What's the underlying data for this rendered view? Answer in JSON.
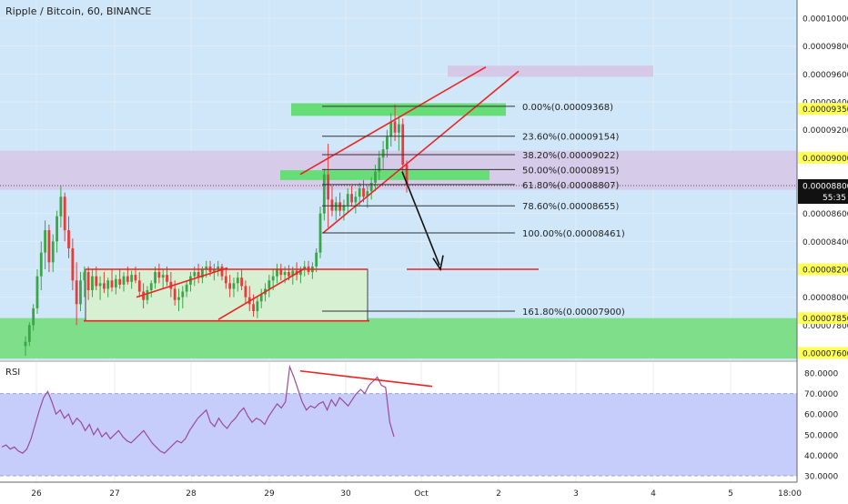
{
  "header": {
    "title": "Ripple / Bitcoin, 60, BINANCE"
  },
  "colors": {
    "main_bg": "#cfe7f8",
    "rsi_bg": "#c6cdfa",
    "zone_green": "#7ede8a",
    "zone_purple": "#d6c9e8",
    "fib_green": "#66dd77",
    "triangle_fill": "#d7f0d2",
    "drawing_red": "#ee2222",
    "rsi_line": "#9a4a9e",
    "candle_up": "#3aa648",
    "candle_down": "#e83b3b",
    "highlight_tag": "#ffff55"
  },
  "price_axis": {
    "ticks": [
      "0.00010000",
      "0.00009800",
      "0.00009600",
      "0.00009400",
      "0.00009200",
      "0.00009000",
      "0.00008800",
      "0.00008600",
      "0.00008400",
      "0.00008200",
      "0.00008000",
      "0.00007800",
      "0.00007600"
    ],
    "highlighted": [
      "0.00009350",
      "0.00009000",
      "0.00008200",
      "0.00007850",
      "0.00007600"
    ],
    "current_price": "0.00008800",
    "countdown": "55:35"
  },
  "time_axis": {
    "labels": [
      "26",
      "27",
      "28",
      "29",
      "30",
      "Oct",
      "2",
      "3",
      "4",
      "5",
      "18:00"
    ]
  },
  "fib_levels": [
    {
      "pct": "0.00%",
      "price": 9.368e-05,
      "label": "0.00%(0.00009368)"
    },
    {
      "pct": "23.60%",
      "price": 9.154e-05,
      "label": "23.60%(0.00009154)"
    },
    {
      "pct": "38.20%",
      "price": 9.022e-05,
      "label": "38.20%(0.00009022)"
    },
    {
      "pct": "50.00%",
      "price": 8.915e-05,
      "label": "50.00%(0.00008915)"
    },
    {
      "pct": "61.80%",
      "price": 8.807e-05,
      "label": "61.80%(0.00008807)"
    },
    {
      "pct": "78.60%",
      "price": 8.655e-05,
      "label": "78.60%(0.00008655)"
    },
    {
      "pct": "100.00%",
      "price": 8.461e-05,
      "label": "100.00%(0.00008461)"
    },
    {
      "pct": "161.80%",
      "price": 7.9e-05,
      "label": "161.80%(0.00007900)"
    }
  ],
  "rsi": {
    "label": "RSI",
    "ticks": [
      "80.0000",
      "70.0000",
      "60.0000",
      "50.0000",
      "40.0000",
      "30.0000"
    ],
    "upper": 70,
    "lower": 30
  },
  "chart_data": {
    "type": "candlestick",
    "title": "Ripple / Bitcoin, 60, BINANCE",
    "xlabel": "",
    "ylabel": "",
    "ylim": [
      7.56e-05,
      0.0001015
    ],
    "price_series": [
      [
        7.65e-05,
        7.72e-05,
        7.58e-05,
        7.68e-05
      ],
      [
        7.68e-05,
        7.82e-05,
        7.65e-05,
        7.8e-05
      ],
      [
        7.8e-05,
        7.95e-05,
        7.76e-05,
        7.92e-05
      ],
      [
        7.92e-05,
        8.2e-05,
        7.88e-05,
        8.15e-05
      ],
      [
        8.15e-05,
        8.4e-05,
        8.05e-05,
        8.32e-05
      ],
      [
        8.32e-05,
        8.55e-05,
        8.2e-05,
        8.48e-05
      ],
      [
        8.48e-05,
        8.52e-05,
        8.18e-05,
        8.25e-05
      ],
      [
        8.25e-05,
        8.45e-05,
        8.18e-05,
        8.4e-05
      ],
      [
        8.4e-05,
        8.62e-05,
        8.32e-05,
        8.58e-05
      ],
      [
        8.58e-05,
        8.8e-05,
        8.5e-05,
        8.72e-05
      ],
      [
        8.72e-05,
        8.75e-05,
        8.4e-05,
        8.48e-05
      ],
      [
        8.48e-05,
        8.58e-05,
        8.28e-05,
        8.35e-05
      ],
      [
        8.35e-05,
        8.42e-05,
        8.05e-05,
        8.12e-05
      ],
      [
        8.12e-05,
        8.25e-05,
        7.8e-05,
        7.95e-05
      ],
      [
        7.95e-05,
        8.18e-05,
        7.9e-05,
        8.12e-05
      ],
      [
        8.12e-05,
        8.22e-05,
        8e-05,
        8.18e-05
      ],
      [
        8.18e-05,
        8.22e-05,
        7.98e-05,
        8.05e-05
      ],
      [
        8.05e-05,
        8.2e-05,
        8e-05,
        8.15e-05
      ],
      [
        8.15e-05,
        8.22e-05,
        8.05e-05,
        8.08e-05
      ],
      [
        8.08e-05,
        8.15e-05,
        7.98e-05,
        8.1e-05
      ],
      [
        8.1e-05,
        8.18e-05,
        8.03e-05,
        8.06e-05
      ],
      [
        8.06e-05,
        8.14e-05,
        8e-05,
        8.12e-05
      ],
      [
        8.12e-05,
        8.2e-05,
        8.04e-05,
        8.07e-05
      ],
      [
        8.07e-05,
        8.16e-05,
        8.02e-05,
        8.13e-05
      ],
      [
        8.13e-05,
        8.2e-05,
        8.06e-05,
        8.09e-05
      ],
      [
        8.09e-05,
        8.18e-05,
        8.04e-05,
        8.15e-05
      ],
      [
        8.15e-05,
        8.22e-05,
        8.09e-05,
        8.11e-05
      ],
      [
        8.11e-05,
        8.19e-05,
        8.06e-05,
        8.16e-05
      ],
      [
        8.16e-05,
        8.22e-05,
        8.1e-05,
        8.12e-05
      ],
      [
        8.12e-05,
        8.18e-05,
        8e-05,
        8.04e-05
      ],
      [
        8.04e-05,
        8.1e-05,
        7.92e-05,
        7.98e-05
      ],
      [
        7.98e-05,
        8.08e-05,
        7.95e-05,
        8.05e-05
      ],
      [
        8.05e-05,
        8.12e-05,
        8e-05,
        8.1e-05
      ],
      [
        8.1e-05,
        8.22e-05,
        8.06e-05,
        8.18e-05
      ],
      [
        8.18e-05,
        8.24e-05,
        8.1e-05,
        8.14e-05
      ],
      [
        8.14e-05,
        8.2e-05,
        8.06e-05,
        8.16e-05
      ],
      [
        8.16e-05,
        8.22e-05,
        8.08e-05,
        8.11e-05
      ],
      [
        8.11e-05,
        8.18e-05,
        8e-05,
        8.06e-05
      ],
      [
        8.06e-05,
        8.12e-05,
        7.94e-05,
        7.98e-05
      ],
      [
        7.98e-05,
        8.06e-05,
        7.9e-05,
        8e-05
      ],
      [
        8e-05,
        8.08e-05,
        7.92e-05,
        8.04e-05
      ],
      [
        8.04e-05,
        8.12e-05,
        8e-05,
        8.09e-05
      ],
      [
        8.09e-05,
        8.18e-05,
        8.04e-05,
        8.15e-05
      ],
      [
        8.15e-05,
        8.22e-05,
        8.08e-05,
        8.18e-05
      ],
      [
        8.18e-05,
        8.24e-05,
        8.1e-05,
        8.14e-05
      ],
      [
        8.14e-05,
        8.22e-05,
        8.1e-05,
        8.2e-05
      ],
      [
        8.2e-05,
        8.26e-05,
        8.14e-05,
        8.22e-05
      ],
      [
        8.22e-05,
        8.26e-05,
        8.15e-05,
        8.18e-05
      ],
      [
        8.18e-05,
        8.24e-05,
        8.12e-05,
        8.2e-05
      ],
      [
        8.2e-05,
        8.26e-05,
        8.15e-05,
        8.22e-05
      ],
      [
        8.22e-05,
        8.24e-05,
        8.12e-05,
        8.15e-05
      ],
      [
        8.15e-05,
        8.2e-05,
        8.06e-05,
        8.1e-05
      ],
      [
        8.1e-05,
        8.16e-05,
        8e-05,
        8.06e-05
      ],
      [
        8.06e-05,
        8.14e-05,
        8e-05,
        8.1e-05
      ],
      [
        8.1e-05,
        8.18e-05,
        8.04e-05,
        8.14e-05
      ],
      [
        8.14e-05,
        8.2e-05,
        8.05e-05,
        8.08e-05
      ],
      [
        8.08e-05,
        8.12e-05,
        7.95e-05,
        8e-05
      ],
      [
        8e-05,
        8.08e-05,
        7.9e-05,
        7.95e-05
      ],
      [
        7.95e-05,
        8.02e-05,
        7.86e-05,
        7.9e-05
      ],
      [
        7.9e-05,
        8e-05,
        7.85e-05,
        7.97e-05
      ],
      [
        7.97e-05,
        8.06e-05,
        7.92e-05,
        8.02e-05
      ],
      [
        8.02e-05,
        8.1e-05,
        7.97e-05,
        8.06e-05
      ],
      [
        8.06e-05,
        8.16e-05,
        8e-05,
        8.12e-05
      ],
      [
        8.12e-05,
        8.2e-05,
        8.05e-05,
        8.15e-05
      ],
      [
        8.15e-05,
        8.24e-05,
        8.1e-05,
        8.2e-05
      ],
      [
        8.2e-05,
        8.24e-05,
        8.12e-05,
        8.16e-05
      ],
      [
        8.16e-05,
        8.22e-05,
        8.1e-05,
        8.18e-05
      ],
      [
        8.18e-05,
        8.23e-05,
        8.12e-05,
        8.15e-05
      ],
      [
        8.15e-05,
        8.22e-05,
        8.09e-05,
        8.19e-05
      ],
      [
        8.19e-05,
        8.25e-05,
        8.12e-05,
        8.16e-05
      ],
      [
        8.16e-05,
        8.22e-05,
        8.1e-05,
        8.2e-05
      ],
      [
        8.2e-05,
        8.26e-05,
        8.15e-05,
        8.22e-05
      ],
      [
        8.22e-05,
        8.26e-05,
        8.16e-05,
        8.18e-05
      ],
      [
        8.18e-05,
        8.25e-05,
        8.13e-05,
        8.22e-05
      ],
      [
        8.22e-05,
        8.35e-05,
        8.18e-05,
        8.32e-05
      ],
      [
        8.32e-05,
        8.65e-05,
        8.28e-05,
        8.6e-05
      ],
      [
        8.6e-05,
        8.92e-05,
        8.55e-05,
        8.88e-05
      ],
      [
        8.88e-05,
        9.1e-05,
        8.5e-05,
        8.7e-05
      ],
      [
        8.7e-05,
        8.8e-05,
        8.58e-05,
        8.62e-05
      ],
      [
        8.62e-05,
        8.72e-05,
        8.55e-05,
        8.68e-05
      ],
      [
        8.68e-05,
        8.75e-05,
        8.58e-05,
        8.62e-05
      ],
      [
        8.62e-05,
        8.7e-05,
        8.55e-05,
        8.66e-05
      ],
      [
        8.66e-05,
        8.78e-05,
        8.6e-05,
        8.74e-05
      ],
      [
        8.74e-05,
        8.8e-05,
        8.65e-05,
        8.68e-05
      ],
      [
        8.68e-05,
        8.76e-05,
        8.6e-05,
        8.72e-05
      ],
      [
        8.72e-05,
        8.82e-05,
        8.66e-05,
        8.78e-05
      ],
      [
        8.78e-05,
        8.84e-05,
        8.68e-05,
        8.72e-05
      ],
      [
        8.72e-05,
        8.8e-05,
        8.64e-05,
        8.76e-05
      ],
      [
        8.76e-05,
        8.86e-05,
        8.7e-05,
        8.82e-05
      ],
      [
        8.82e-05,
        8.95e-05,
        8.76e-05,
        8.9e-05
      ],
      [
        8.9e-05,
        9.05e-05,
        8.84e-05,
        9e-05
      ],
      [
        9e-05,
        9.12e-05,
        8.92e-05,
        9.06e-05
      ],
      [
        9.06e-05,
        9.2e-05,
        9e-05,
        9.15e-05
      ],
      [
        9.15e-05,
        9.32e-05,
        9.08e-05,
        9.26e-05
      ],
      [
        9.26e-05,
        9.38e-05,
        9.12e-05,
        9.18e-05
      ],
      [
        9.18e-05,
        9.3e-05,
        9.05e-05,
        9.24e-05
      ],
      [
        9.24e-05,
        9.28e-05,
        8.9e-05,
        8.95e-05
      ],
      [
        8.95e-05,
        8.98e-05,
        8.75e-05,
        8.8e-05
      ]
    ],
    "rsi_values": [
      44,
      45,
      43,
      44,
      42,
      41,
      43,
      48,
      55,
      62,
      68,
      71,
      66,
      60,
      62,
      58,
      60,
      55,
      58,
      56,
      52,
      55,
      50,
      53,
      49,
      51,
      48,
      50,
      52,
      49,
      47,
      46,
      48,
      50,
      52,
      49,
      46,
      44,
      42,
      41,
      43,
      45,
      47,
      46,
      48,
      52,
      55,
      58,
      60,
      62,
      56,
      54,
      58,
      55,
      53,
      56,
      58,
      61,
      63,
      59,
      56,
      58,
      57,
      55,
      59,
      62,
      65,
      63,
      66,
      83,
      78,
      72,
      66,
      62,
      64,
      63,
      65,
      66,
      62,
      67,
      64,
      68,
      66,
      64,
      67,
      70,
      72,
      70,
      74,
      76,
      78,
      74,
      73,
      56,
      49
    ],
    "rsi_ylim": [
      28,
      84
    ],
    "annotations": [
      "Fibonacci retracement",
      "rising wedge",
      "target arrow",
      "RSI bearish divergence"
    ]
  }
}
